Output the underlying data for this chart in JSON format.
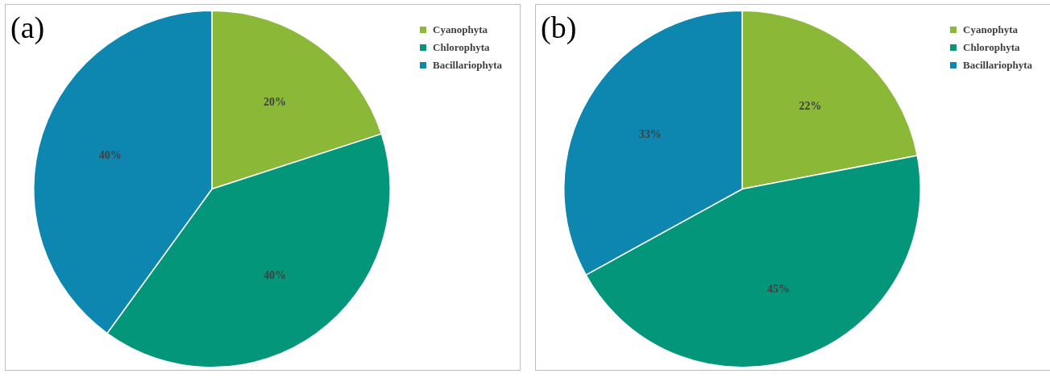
{
  "chart_data": [
    {
      "type": "pie",
      "title": "(a)",
      "categories": [
        "Cyanophyta",
        "Chlorophyta",
        "Bacillariophyta"
      ],
      "values": [
        20,
        40,
        40
      ],
      "colors": [
        "#8cb838",
        "#04967a",
        "#0e87b0"
      ],
      "value_labels": [
        "20%",
        "40%",
        "40%"
      ],
      "legend": "top right"
    },
    {
      "type": "pie",
      "title": "(b)",
      "categories": [
        "Cyanophyta",
        "Chlorophyta",
        "Bacillariophyta"
      ],
      "values": [
        22,
        45,
        33
      ],
      "colors": [
        "#8cb838",
        "#04967a",
        "#0e87b0"
      ],
      "value_labels": [
        "22%",
        "45%",
        "33%"
      ],
      "legend": "top right"
    }
  ]
}
